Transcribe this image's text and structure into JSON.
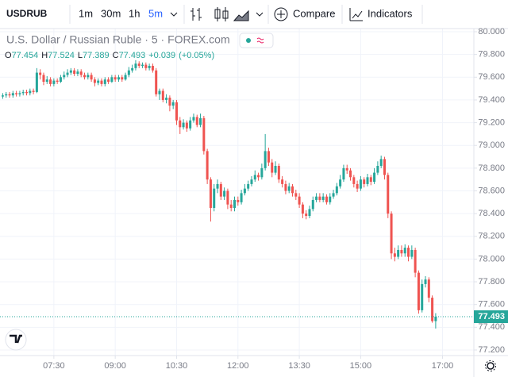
{
  "toolbar": {
    "symbol": "USDRUB",
    "intervals": [
      "1m",
      "30m",
      "1h",
      "5m"
    ],
    "active_interval": 3,
    "compare": "Compare",
    "indicators": "Indicators"
  },
  "chart_data": {
    "type": "candlestick",
    "title": "U.S. Dollar / Russian Ruble · 5 · FOREX.com",
    "ohlc_labels": [
      "O",
      "H",
      "L",
      "C"
    ],
    "change": "+0.039",
    "change_pct": "(+0.05%)",
    "up_color": "#26a69a",
    "down_color": "#ef5350",
    "grid": true,
    "x": [
      375,
      380,
      385,
      390,
      395,
      400,
      405,
      410,
      415,
      420,
      425,
      430,
      435,
      440,
      445,
      450,
      455,
      460,
      465,
      470,
      475,
      480,
      485,
      490,
      495,
      500,
      505,
      510,
      515,
      520,
      525,
      530,
      535,
      540,
      545,
      550,
      555,
      560,
      565,
      570,
      575,
      580,
      585,
      590,
      595,
      600,
      605,
      610,
      615,
      620,
      625,
      630,
      635,
      640,
      645,
      650,
      655,
      660,
      665,
      670,
      675,
      680,
      685,
      690,
      695,
      700,
      705,
      710,
      715,
      720,
      725,
      730,
      735,
      740,
      745,
      750,
      755,
      760,
      765,
      770,
      775,
      780,
      785,
      790,
      795,
      800,
      805,
      810,
      815,
      820,
      825,
      830,
      835,
      840,
      845,
      850,
      855,
      860,
      865,
      870,
      875,
      880,
      885,
      890,
      895,
      900,
      905,
      910,
      915,
      920,
      925,
      930,
      935,
      940,
      945,
      950,
      955,
      960,
      965,
      970,
      975,
      980,
      985,
      990,
      995,
      1000,
      1005,
      1010
    ],
    "open": [
      79.43,
      79.44,
      79.45,
      79.44,
      79.46,
      79.45,
      79.46,
      79.47,
      79.46,
      79.48,
      79.47,
      79.64,
      79.62,
      79.56,
      79.58,
      79.54,
      79.57,
      79.56,
      79.6,
      79.62,
      79.64,
      79.66,
      79.63,
      79.65,
      79.62,
      79.6,
      79.62,
      79.58,
      79.55,
      79.57,
      79.54,
      79.58,
      79.56,
      79.6,
      79.58,
      79.6,
      79.58,
      79.62,
      79.66,
      79.68,
      79.72,
      79.7,
      79.71,
      79.68,
      79.7,
      79.66,
      79.45,
      79.48,
      79.4,
      79.42,
      79.35,
      79.38,
      79.22,
      79.16,
      79.2,
      79.15,
      79.22,
      79.25,
      79.18,
      79.24,
      78.95,
      78.7,
      78.45,
      78.62,
      78.66,
      78.55,
      78.6,
      78.48,
      78.45,
      78.52,
      78.5,
      78.58,
      78.62,
      78.66,
      78.7,
      78.74,
      78.72,
      78.8,
      78.95,
      78.85,
      78.76,
      78.82,
      78.7,
      78.66,
      78.6,
      78.64,
      78.58,
      78.55,
      78.48,
      78.4,
      78.38,
      78.44,
      78.52,
      78.55,
      78.52,
      78.55,
      78.5,
      78.55,
      78.58,
      78.64,
      78.7,
      78.8,
      78.78,
      78.72,
      78.66,
      78.62,
      78.7,
      78.66,
      78.72,
      78.68,
      78.76,
      78.82,
      78.88,
      78.74,
      78.4,
      78.05,
      78.02,
      78.08,
      78.05,
      78.1,
      78.02,
      78.08,
      77.88,
      77.55,
      77.78,
      77.82,
      77.66,
      77.454
    ],
    "high": [
      79.46,
      79.47,
      79.47,
      79.48,
      79.48,
      79.48,
      79.49,
      79.49,
      79.5,
      79.5,
      79.68,
      79.67,
      79.64,
      79.61,
      79.6,
      79.59,
      79.59,
      79.62,
      79.65,
      79.67,
      79.68,
      79.68,
      79.67,
      79.67,
      79.64,
      79.64,
      79.64,
      79.6,
      79.59,
      79.59,
      79.6,
      79.6,
      79.62,
      79.62,
      79.62,
      79.62,
      79.64,
      79.69,
      79.71,
      79.75,
      79.74,
      79.73,
      79.73,
      79.72,
      79.72,
      79.68,
      79.5,
      79.5,
      79.45,
      79.44,
      79.4,
      79.4,
      79.25,
      79.23,
      79.22,
      79.25,
      79.28,
      79.27,
      79.28,
      79.26,
      78.97,
      78.72,
      78.66,
      78.7,
      78.68,
      78.63,
      78.62,
      78.52,
      78.55,
      78.55,
      78.61,
      78.66,
      78.69,
      78.73,
      78.78,
      78.76,
      78.84,
      79.1,
      78.98,
      78.88,
      78.86,
      78.84,
      78.73,
      78.69,
      78.67,
      78.66,
      78.61,
      78.58,
      78.5,
      78.43,
      78.47,
      78.55,
      78.58,
      78.58,
      78.58,
      78.57,
      78.58,
      78.61,
      78.67,
      78.74,
      78.83,
      78.83,
      78.8,
      78.74,
      78.69,
      78.73,
      78.72,
      78.75,
      78.74,
      78.8,
      78.86,
      78.91,
      78.9,
      78.76,
      78.42,
      78.1,
      78.12,
      78.12,
      78.13,
      78.12,
      78.12,
      78.1,
      77.9,
      77.82,
      77.85,
      77.84,
      77.68,
      77.524
    ],
    "low": [
      79.41,
      79.42,
      79.42,
      79.42,
      79.43,
      79.43,
      79.44,
      79.44,
      79.44,
      79.45,
      79.46,
      79.58,
      79.53,
      79.54,
      79.52,
      79.52,
      79.54,
      79.55,
      79.58,
      79.6,
      79.62,
      79.61,
      79.61,
      79.6,
      79.58,
      79.58,
      79.56,
      79.52,
      79.53,
      79.52,
      79.52,
      79.54,
      79.55,
      79.56,
      79.56,
      79.56,
      79.57,
      79.6,
      79.64,
      79.66,
      79.68,
      79.68,
      79.66,
      79.66,
      79.64,
      79.43,
      79.4,
      79.38,
      79.37,
      79.3,
      79.32,
      79.18,
      79.1,
      79.14,
      79.12,
      79.13,
      79.2,
      79.16,
      79.16,
      78.92,
      78.66,
      78.33,
      78.42,
      78.58,
      78.52,
      78.52,
      78.44,
      78.42,
      78.42,
      78.47,
      78.48,
      78.56,
      78.6,
      78.64,
      78.68,
      78.69,
      78.7,
      78.78,
      78.82,
      78.72,
      78.74,
      78.67,
      78.63,
      78.57,
      78.58,
      78.55,
      78.52,
      78.45,
      78.36,
      78.35,
      78.36,
      78.42,
      78.5,
      78.5,
      78.5,
      78.48,
      78.48,
      78.53,
      78.56,
      78.62,
      78.68,
      78.75,
      78.69,
      78.63,
      78.59,
      78.6,
      78.63,
      78.64,
      78.65,
      78.66,
      78.74,
      78.8,
      78.7,
      78.36,
      78.0,
      77.98,
      78.0,
      78.02,
      78.02,
      77.98,
      78.0,
      77.84,
      77.52,
      77.53,
      77.75,
      77.62,
      77.44,
      77.389
    ],
    "close": [
      79.44,
      79.45,
      79.44,
      79.46,
      79.45,
      79.46,
      79.47,
      79.46,
      79.48,
      79.47,
      79.64,
      79.62,
      79.56,
      79.58,
      79.54,
      79.57,
      79.56,
      79.6,
      79.62,
      79.64,
      79.66,
      79.63,
      79.65,
      79.62,
      79.6,
      79.62,
      79.58,
      79.55,
      79.57,
      79.54,
      79.58,
      79.56,
      79.6,
      79.58,
      79.6,
      79.58,
      79.62,
      79.66,
      79.68,
      79.72,
      79.7,
      79.71,
      79.68,
      79.7,
      79.66,
      79.45,
      79.48,
      79.4,
      79.42,
      79.35,
      79.38,
      79.22,
      79.16,
      79.2,
      79.15,
      79.22,
      79.25,
      79.18,
      79.24,
      78.95,
      78.7,
      78.45,
      78.62,
      78.66,
      78.55,
      78.6,
      78.48,
      78.45,
      78.52,
      78.5,
      78.58,
      78.62,
      78.66,
      78.7,
      78.74,
      78.72,
      78.8,
      78.95,
      78.85,
      78.76,
      78.82,
      78.7,
      78.66,
      78.6,
      78.64,
      78.58,
      78.55,
      78.48,
      78.4,
      78.38,
      78.44,
      78.52,
      78.55,
      78.52,
      78.55,
      78.5,
      78.55,
      78.58,
      78.64,
      78.7,
      78.8,
      78.78,
      78.72,
      78.66,
      78.62,
      78.7,
      78.66,
      78.72,
      78.68,
      78.76,
      78.82,
      78.88,
      78.74,
      78.4,
      78.05,
      78.02,
      78.08,
      78.05,
      78.1,
      78.02,
      78.08,
      77.88,
      77.55,
      77.78,
      77.82,
      77.66,
      77.454,
      77.493
    ],
    "xlim": [
      371,
      1066
    ],
    "xticks": [
      {
        "value": 450,
        "label": "07:30"
      },
      {
        "value": 540,
        "label": "09:00"
      },
      {
        "value": 630,
        "label": "10:30"
      },
      {
        "value": 720,
        "label": "12:00"
      },
      {
        "value": 810,
        "label": "13:30"
      },
      {
        "value": 900,
        "label": "15:00"
      },
      {
        "value": 1020,
        "label": "17:00"
      }
    ],
    "ylim": [
      77.151,
      80.028
    ],
    "yticks": [
      {
        "value": 77.2,
        "label": "77.200"
      },
      {
        "value": 77.4,
        "label": "77.400"
      },
      {
        "value": 77.6,
        "label": "77.600"
      },
      {
        "value": 77.8,
        "label": "77.800"
      },
      {
        "value": 78.0,
        "label": "78.000"
      },
      {
        "value": 78.2,
        "label": "78.200"
      },
      {
        "value": 78.4,
        "label": "78.400"
      },
      {
        "value": 78.6,
        "label": "78.600"
      },
      {
        "value": 78.8,
        "label": "78.800"
      },
      {
        "value": 79.0,
        "label": "79.000"
      },
      {
        "value": 79.2,
        "label": "79.200"
      },
      {
        "value": 79.4,
        "label": "79.400"
      },
      {
        "value": 79.6,
        "label": "79.600"
      },
      {
        "value": 79.8,
        "label": "79.800"
      },
      {
        "value": 80.0,
        "label": "80.000"
      }
    ]
  }
}
